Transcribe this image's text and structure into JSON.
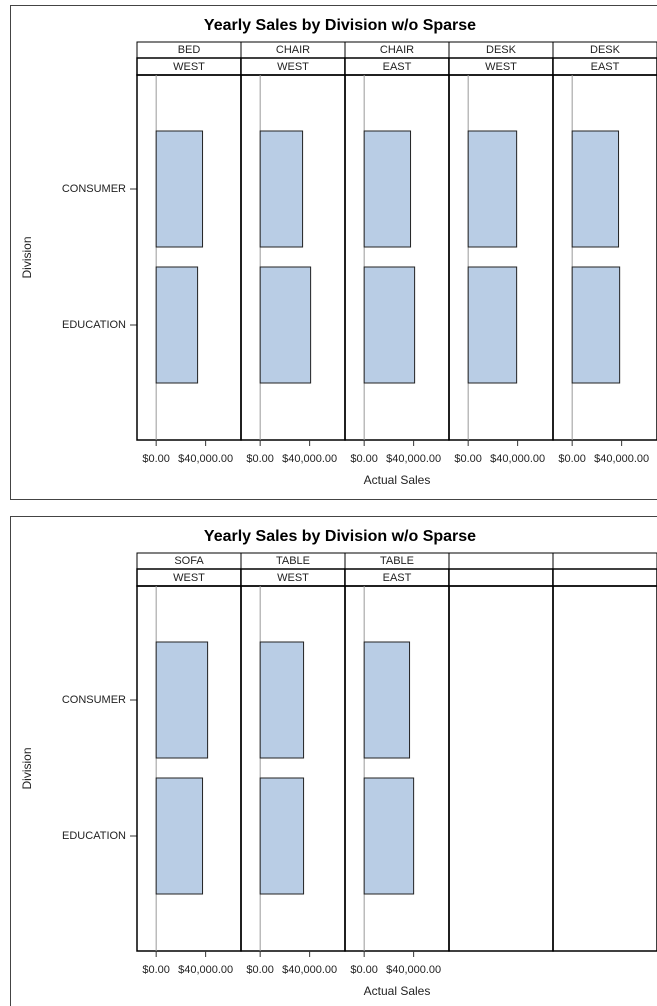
{
  "chart_data": [
    {
      "type": "bar",
      "orientation": "horizontal",
      "title": "Yearly Sales by Division w/o Sparse",
      "y_label": "Division",
      "x_label": "Actual Sales",
      "color": "#b9cde5",
      "categories": [
        "CONSUMER",
        "EDUCATION"
      ],
      "xlim": [
        -15500,
        68600
      ],
      "xticks": [
        {
          "value": 0,
          "label": "$0.00"
        },
        {
          "value": 40000,
          "label": "$40,000.00"
        }
      ],
      "panels": [
        {
          "labels": [
            "BED",
            "WEST"
          ],
          "values": [
            37500,
            33500
          ]
        },
        {
          "labels": [
            "CHAIR",
            "WEST"
          ],
          "values": [
            34300,
            40800
          ]
        },
        {
          "labels": [
            "CHAIR",
            "EAST"
          ],
          "values": [
            37500,
            40800
          ]
        },
        {
          "labels": [
            "DESK",
            "WEST"
          ],
          "values": [
            39200,
            39200
          ]
        },
        {
          "labels": [
            "DESK",
            "EAST"
          ],
          "values": [
            37500,
            38400
          ]
        }
      ]
    },
    {
      "type": "bar",
      "orientation": "horizontal",
      "title": "Yearly Sales by Division w/o Sparse",
      "y_label": "Division",
      "x_label": "Actual Sales",
      "color": "#b9cde5",
      "categories": [
        "CONSUMER",
        "EDUCATION"
      ],
      "xlim": [
        -15500,
        68600
      ],
      "xticks": [
        {
          "value": 0,
          "label": "$0.00"
        },
        {
          "value": 40000,
          "label": "$40,000.00"
        }
      ],
      "panels": [
        {
          "labels": [
            "SOFA",
            "WEST"
          ],
          "values": [
            41600,
            37500
          ]
        },
        {
          "labels": [
            "TABLE",
            "WEST"
          ],
          "values": [
            35100,
            35100
          ]
        },
        {
          "labels": [
            "TABLE",
            "EAST"
          ],
          "values": [
            36700,
            40000
          ]
        },
        {
          "labels": [
            null,
            null
          ],
          "values": [
            null,
            null
          ]
        },
        {
          "labels": [
            null,
            null
          ],
          "values": [
            null,
            null
          ]
        }
      ]
    }
  ]
}
